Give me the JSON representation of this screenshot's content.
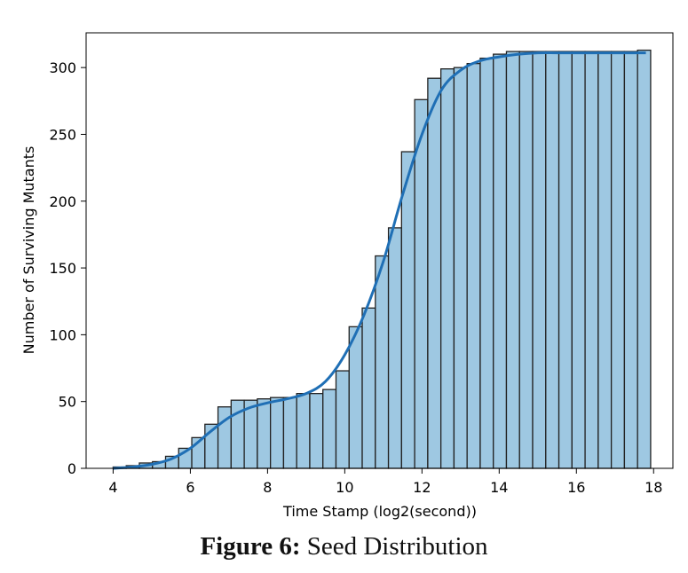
{
  "caption": {
    "label": "Figure 6:",
    "text": "Seed Distribution"
  },
  "chart_data": {
    "type": "bar",
    "subtype": "cumulative histogram with smoothed line",
    "xlabel": "Time Stamp (log2(second))",
    "ylabel": "Number of Surviving Mutants",
    "xlim": [
      3.3,
      18.5
    ],
    "ylim": [
      0,
      326
    ],
    "xticks": [
      4,
      6,
      8,
      10,
      12,
      14,
      16,
      18
    ],
    "yticks": [
      0,
      50,
      100,
      150,
      200,
      250,
      300
    ],
    "bin_start": 4.0,
    "bin_width": 0.3396,
    "values": [
      1,
      2,
      4,
      5,
      9,
      15,
      23,
      33,
      46,
      51,
      51,
      52,
      53,
      53,
      56,
      56,
      59,
      73,
      106,
      120,
      159,
      180,
      237,
      276,
      292,
      299,
      300,
      303,
      307,
      310,
      312,
      312,
      312,
      312,
      312,
      312,
      312,
      312,
      312,
      312,
      313
    ],
    "curve": {
      "x": [
        4.0,
        4.5,
        5.0,
        5.5,
        6.0,
        6.5,
        7.0,
        7.5,
        8.0,
        8.5,
        9.0,
        9.5,
        10.0,
        10.5,
        11.0,
        11.5,
        12.0,
        12.5,
        13.0,
        13.5,
        14.0,
        14.5,
        15.0,
        15.5,
        16.0,
        16.5,
        17.0,
        17.5,
        17.8
      ],
      "y": [
        0,
        1,
        3,
        7,
        15,
        27,
        38,
        45,
        49,
        52,
        56,
        65,
        85,
        115,
        155,
        205,
        250,
        283,
        298,
        305,
        308,
        310,
        311,
        311,
        311,
        311,
        311,
        311,
        311
      ]
    },
    "bar_fill": "#9ec8e2",
    "bar_edge": "#222222",
    "line_color": "#1f6fb5",
    "grid": false,
    "legend": "none"
  }
}
